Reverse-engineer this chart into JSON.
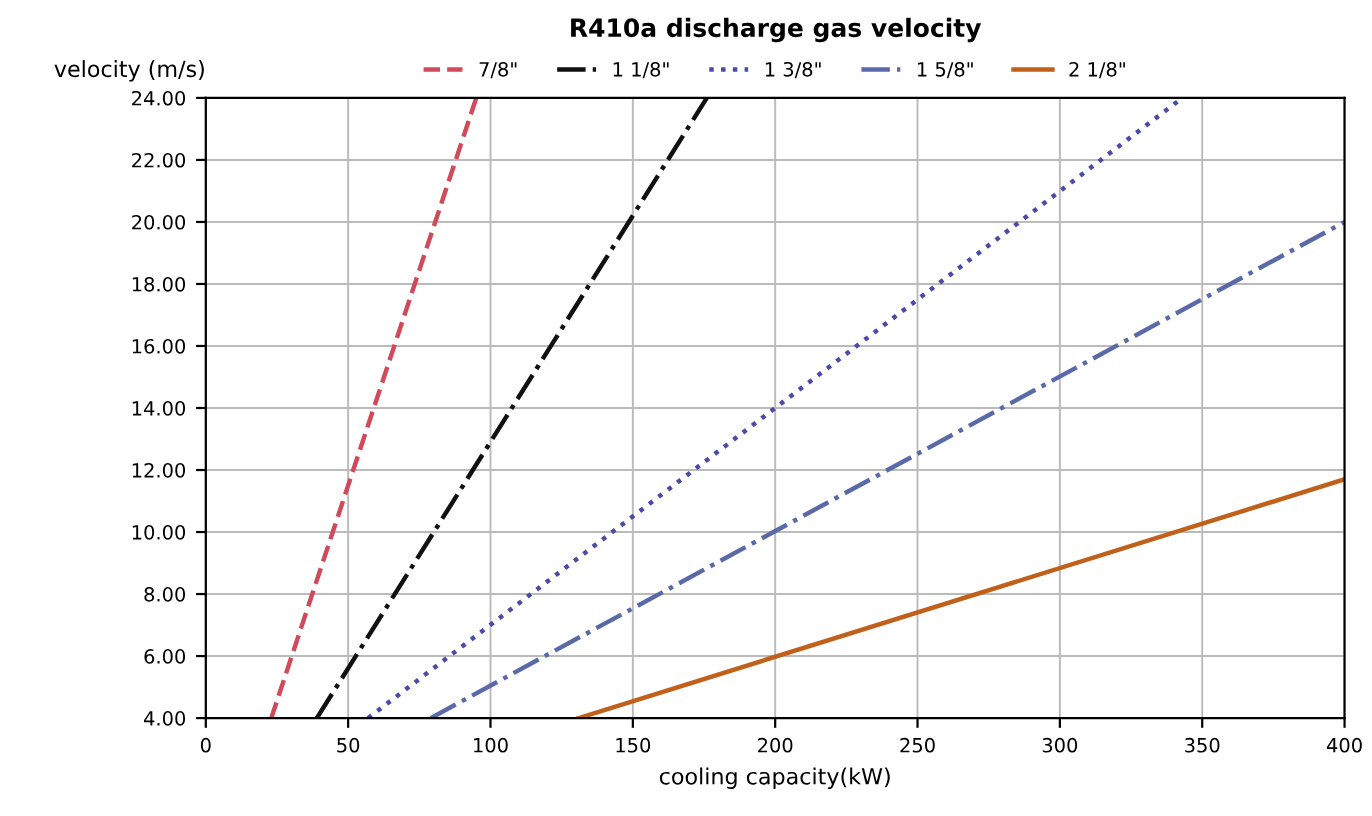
{
  "chart_data": {
    "type": "line",
    "title": "R410a discharge gas velocity",
    "xlabel": "cooling capacity(kW)",
    "ylabel": "velocity (m/s)",
    "xlim": [
      0,
      400
    ],
    "xticks": [
      0,
      50,
      100,
      150,
      200,
      250,
      300,
      350,
      400
    ],
    "ylim": [
      4,
      24
    ],
    "yticks": [
      {
        "value": 4,
        "label": "4.00"
      },
      {
        "value": 6,
        "label": "6.00"
      },
      {
        "value": 8,
        "label": "8.00"
      },
      {
        "value": 10,
        "label": "10.00"
      },
      {
        "value": 12,
        "label": "12.00"
      },
      {
        "value": 14,
        "label": "14.00"
      },
      {
        "value": 16,
        "label": "16.00"
      },
      {
        "value": 18,
        "label": "18.00"
      },
      {
        "value": 20,
        "label": "20.00"
      },
      {
        "value": 22,
        "label": "22.00"
      },
      {
        "value": 24,
        "label": "24.00"
      }
    ],
    "grid": true,
    "legend": "top",
    "marker": "none",
    "series": [
      {
        "name": "7/8\"",
        "color": "#d04a5a",
        "line_style": "dashed",
        "x": [
          23,
          95
        ],
        "values": [
          4,
          24
        ]
      },
      {
        "name": "1 1/8\"",
        "color": "#111111",
        "line_style": "dashdot",
        "x": [
          39,
          176
        ],
        "values": [
          4,
          24
        ]
      },
      {
        "name": "1 3/8\"",
        "color": "#4a4aa8",
        "line_style": "dotted",
        "x": [
          57,
          343
        ],
        "values": [
          4,
          24
        ]
      },
      {
        "name": "1 5/8\"",
        "color": "#5a6aa8",
        "line_style": "dashdot",
        "x": [
          79,
          400
        ],
        "values": [
          4,
          20
        ]
      },
      {
        "name": "2 1/8\"",
        "color": "#c0601a",
        "line_style": "solid",
        "x": [
          131,
          400
        ],
        "values": [
          4,
          11.7
        ]
      }
    ]
  }
}
